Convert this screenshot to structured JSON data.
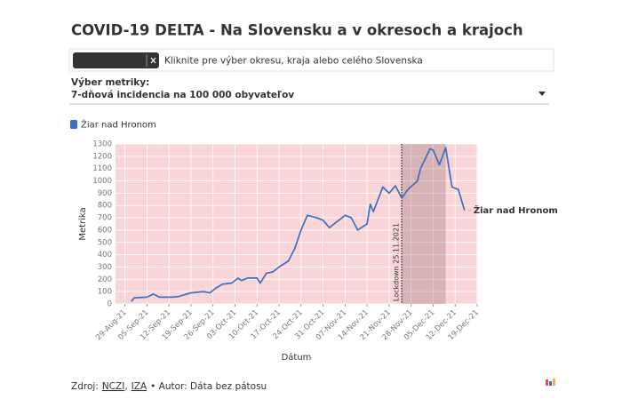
{
  "page": {
    "selected": "Žiar nad Hronom",
    "placeholder": "Kliknite pre výber okresu, kraja alebo celého Slovenska",
    "metric_label": "Výber metriky:",
    "metric_value": "7-dňová incidencia na 100 000 obyvateľov",
    "source": {
      "label": "Zdroj:",
      "links": [
        "NCZI",
        "IZA"
      ],
      "separator": ",",
      "author": "• Autor: Dáta bez pátosu"
    }
  },
  "chart_data": {
    "type": "line",
    "title": "COVID-19 DELTA - Na Slovensku a v okresoch a krajoch",
    "x_label": "Dátum",
    "y_label": "Metrika",
    "x": [
      "2021-08-31",
      "2021-09-01",
      "2021-09-05",
      "2021-09-07",
      "2021-09-09",
      "2021-09-13",
      "2021-09-15",
      "2021-09-17",
      "2021-09-19",
      "2021-09-23",
      "2021-09-25",
      "2021-09-27",
      "2021-09-29",
      "2021-10-02",
      "2021-10-04",
      "2021-10-05",
      "2021-10-07",
      "2021-10-10",
      "2021-10-11",
      "2021-10-13",
      "2021-10-15",
      "2021-10-17",
      "2021-10-20",
      "2021-10-22",
      "2021-10-24",
      "2021-10-26",
      "2021-10-29",
      "2021-10-31",
      "2021-11-02",
      "2021-11-05",
      "2021-11-07",
      "2021-11-09",
      "2021-11-11",
      "2021-11-14",
      "2021-11-15",
      "2021-11-16",
      "2021-11-19",
      "2021-11-21",
      "2021-11-23",
      "2021-11-25",
      "2021-11-27",
      "2021-11-30",
      "2021-12-01",
      "2021-12-04",
      "2021-12-05",
      "2021-12-07",
      "2021-12-09",
      "2021-12-11",
      "2021-12-13",
      "2021-12-15"
    ],
    "series": [
      {
        "name": "Žiar nad Hronom",
        "color": "#3a6fc4",
        "values": [
          20,
          50,
          55,
          80,
          55,
          55,
          60,
          75,
          90,
          100,
          90,
          130,
          160,
          170,
          210,
          190,
          210,
          210,
          170,
          250,
          260,
          300,
          350,
          450,
          600,
          720,
          700,
          680,
          620,
          680,
          720,
          700,
          600,
          650,
          810,
          750,
          950,
          900,
          960,
          860,
          930,
          1000,
          1100,
          1260,
          1250,
          1130,
          1270,
          950,
          930,
          760
        ]
      }
    ],
    "xlim": [
      "2021-08-26",
      "2021-12-19"
    ],
    "xticks": [
      {
        "value": "2021-08-29",
        "label": "29-Aug-21"
      },
      {
        "value": "2021-09-05",
        "label": "05-Sep-21"
      },
      {
        "value": "2021-09-12",
        "label": "12-Sep-21"
      },
      {
        "value": "2021-09-19",
        "label": "19-Sep-21"
      },
      {
        "value": "2021-09-26",
        "label": "26-Sep-21"
      },
      {
        "value": "2021-10-03",
        "label": "03-Oct-21"
      },
      {
        "value": "2021-10-10",
        "label": "10-Oct-21"
      },
      {
        "value": "2021-10-17",
        "label": "17-Oct-21"
      },
      {
        "value": "2021-10-24",
        "label": "24-Oct-21"
      },
      {
        "value": "2021-10-31",
        "label": "31-Oct-21"
      },
      {
        "value": "2021-11-07",
        "label": "07-Nov-21"
      },
      {
        "value": "2021-11-14",
        "label": "14-Nov-21"
      },
      {
        "value": "2021-11-21",
        "label": "21-Nov-21"
      },
      {
        "value": "2021-11-28",
        "label": "28-Nov-21"
      },
      {
        "value": "2021-12-05",
        "label": "05-Dec-21"
      },
      {
        "value": "2021-12-12",
        "label": "12-Dec-21"
      },
      {
        "value": "2021-12-19",
        "label": "19-Dec-21"
      }
    ],
    "ylim": [
      0,
      1300
    ],
    "yticks": [
      0,
      100,
      200,
      300,
      400,
      500,
      600,
      700,
      800,
      900,
      1000,
      1100,
      1200,
      1300
    ],
    "grid": true,
    "background": "#f9d5d7",
    "shade": {
      "from": "2021-11-25",
      "to": "2021-12-09",
      "color": "#8a5a5c"
    },
    "annotation": {
      "text": "Lockdown 25.11.2021",
      "x": "2021-11-25"
    }
  }
}
